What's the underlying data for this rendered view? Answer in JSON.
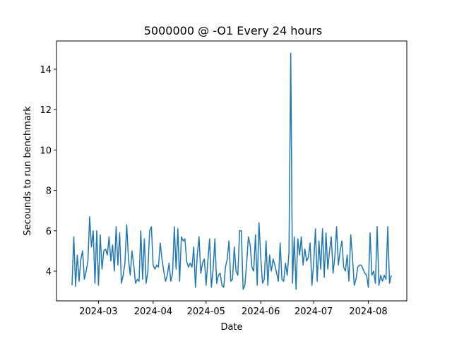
{
  "chart_data": {
    "type": "line",
    "title": "5000000 @ -O1 Every 24 hours",
    "xlabel": "Date",
    "ylabel": "Secounds to run benchmark",
    "color": "#1f77b4",
    "x": [
      46,
      47,
      48,
      49,
      50,
      51,
      52,
      53,
      54,
      55,
      56,
      57,
      58,
      59,
      60,
      61,
      62,
      63,
      64,
      65,
      66,
      67,
      68,
      69,
      70,
      71,
      72,
      73,
      74,
      75,
      76,
      77,
      78,
      79,
      80,
      81,
      82,
      83,
      84,
      85,
      86,
      87,
      88,
      89,
      90,
      91,
      92,
      93,
      94,
      95,
      96,
      97,
      98,
      99,
      100,
      101,
      102,
      103,
      104,
      105,
      106,
      107,
      108,
      109,
      110,
      111,
      112,
      113,
      114,
      115,
      116,
      117,
      118,
      119,
      120,
      121,
      122,
      123,
      124,
      125,
      126,
      127,
      128,
      129,
      130,
      131,
      132,
      133,
      134,
      135,
      136,
      137,
      138,
      139,
      140,
      141,
      142,
      143,
      144,
      145,
      146,
      147,
      148,
      149,
      150,
      151,
      152,
      153,
      154,
      155,
      156,
      157,
      158,
      159,
      160,
      161,
      162,
      163,
      164,
      165,
      166,
      167,
      168,
      169,
      170,
      171,
      172,
      173,
      174,
      175,
      176,
      177,
      178,
      179,
      180,
      181,
      182,
      183,
      184,
      185,
      186,
      187,
      188,
      189,
      190,
      191,
      192,
      193,
      194,
      195,
      196,
      197,
      198,
      199,
      200,
      201,
      202,
      203,
      204,
      205,
      206,
      207,
      208,
      209,
      210,
      211,
      212,
      213,
      214,
      215,
      216,
      217,
      218,
      219,
      220,
      221,
      222,
      223,
      224,
      225,
      226,
      227
    ],
    "values": [
      3.3,
      5.7,
      3.25,
      4.8,
      3.5,
      4.6,
      5.0,
      3.6,
      4.0,
      4.5,
      6.7,
      5.2,
      6.0,
      3.4,
      6.0,
      3.3,
      5.8,
      4.1,
      5.0,
      5.1,
      4.8,
      5.7,
      4.5,
      5.3,
      4.0,
      6.2,
      4.3,
      5.9,
      3.4,
      3.8,
      4.4,
      6.3,
      4.6,
      3.8,
      5.0,
      4.3,
      3.4,
      3.6,
      3.5,
      6.0,
      3.6,
      5.6,
      3.4,
      4.0,
      6.0,
      6.2,
      4.3,
      4.1,
      4.3,
      4.2,
      5.4,
      4.6,
      4.0,
      3.5,
      3.8,
      4.4,
      3.5,
      3.9,
      6.2,
      4.1,
      6.1,
      3.5,
      5.7,
      5.5,
      5.6,
      4.5,
      4.2,
      4.4,
      4.2,
      5.2,
      3.2,
      4.8,
      5.7,
      3.9,
      4.4,
      4.6,
      3.3,
      4.5,
      5.6,
      3.2,
      4.1,
      5.6,
      3.4,
      3.8,
      3.9,
      3.3,
      3.2,
      4.2,
      4.6,
      5.5,
      3.5,
      3.6,
      5.2,
      4.0,
      3.8,
      6.0,
      6.0,
      3.1,
      3.3,
      4.4,
      5.7,
      5.3,
      4.2,
      4.0,
      5.8,
      3.3,
      6.4,
      4.7,
      3.4,
      3.6,
      5.5,
      3.3,
      4.8,
      4.0,
      4.6,
      4.3,
      3.9,
      3.5,
      5.4,
      3.6,
      3.5,
      4.4,
      3.8,
      4.9,
      14.8,
      3.4,
      5.7,
      3.1,
      5.6,
      4.8,
      5.7,
      4.3,
      5.1,
      4.5,
      4.7,
      5.4,
      3.3,
      4.4,
      6.1,
      3.5,
      5.5,
      4.1,
      6.1,
      3.7,
      5.9,
      4.1,
      5.0,
      5.7,
      3.9,
      4.7,
      6.2,
      4.3,
      5.0,
      5.5,
      4.2,
      4.0,
      4.8,
      3.5,
      5.8,
      4.7,
      3.3,
      3.6,
      4.2,
      4.3,
      4.3,
      4.1,
      3.9,
      3.8,
      3.2,
      5.9,
      3.8,
      4.0,
      3.4,
      6.2,
      3.3,
      3.8,
      3.5,
      3.8,
      3.6,
      6.2,
      3.4,
      3.8
    ],
    "xlim": [
      37.2,
      235.8
    ],
    "xticks": [
      {
        "value": 61,
        "label": "2024-03"
      },
      {
        "value": 92,
        "label": "2024-04"
      },
      {
        "value": 122,
        "label": "2024-05"
      },
      {
        "value": 153,
        "label": "2024-06"
      },
      {
        "value": 183,
        "label": "2024-07"
      },
      {
        "value": 214,
        "label": "2024-08"
      }
    ],
    "ylim": [
      2.53,
      15.4
    ],
    "yticks": [
      4,
      6,
      8,
      10,
      12,
      14
    ]
  }
}
